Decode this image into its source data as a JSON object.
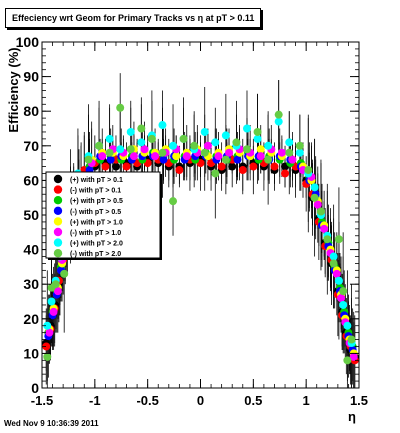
{
  "page": {
    "footer_date": "Wed Nov  9 10:36:39 2011"
  },
  "chart_data": {
    "type": "scatter",
    "title": "Effeciency wrt Geom for Primary Tracks vs    η at pT > 0.11",
    "xlabel": "η",
    "ylabel": "Efficiency (%)",
    "xlim": [
      -1.5,
      1.5
    ],
    "ylim": [
      0,
      100
    ],
    "x_ticks": [
      -1.5,
      -1,
      -0.5,
      0,
      0.5,
      1,
      1.5
    ],
    "x_tick_labels": [
      "-1.5",
      "-1",
      "-0.5",
      "0",
      "0.5",
      "1",
      "1.5"
    ],
    "y_ticks": [
      0,
      10,
      20,
      30,
      40,
      50,
      60,
      70,
      80,
      90,
      100
    ],
    "y_tick_labels": [
      "0",
      "10",
      "20",
      "30",
      "40",
      "50",
      "60",
      "70",
      "80",
      "90",
      "100"
    ],
    "grid": false,
    "legend_position": "left-middle",
    "series": [
      {
        "name": "(+) with pT > 0.1",
        "color": "#000000",
        "x": [
          -1.46,
          -1.42,
          -1.38,
          -1.34,
          -1.3,
          -1.26,
          -1.2,
          -1.1,
          -1.0,
          -0.9,
          -0.8,
          -0.7,
          -0.6,
          -0.5,
          -0.4,
          -0.3,
          -0.2,
          -0.1,
          0.0,
          0.1,
          0.2,
          0.3,
          0.4,
          0.5,
          0.6,
          0.7,
          0.8,
          0.9,
          1.0,
          1.06,
          1.12,
          1.18,
          1.24,
          1.3,
          1.34,
          1.38,
          1.42,
          1.46
        ],
        "y": [
          13,
          18,
          24,
          30,
          38,
          45,
          55,
          62,
          64,
          65,
          64,
          65,
          64,
          66,
          65,
          64,
          64,
          65,
          66,
          64,
          63,
          64,
          64,
          65,
          64,
          63,
          64,
          63,
          60,
          55,
          49,
          42,
          36,
          28,
          22,
          16,
          11,
          9
        ]
      },
      {
        "name": "(-) with pT > 0.1",
        "color": "#ff0000",
        "x": [
          -1.46,
          -1.42,
          -1.38,
          -1.34,
          -1.3,
          -1.26,
          -1.2,
          -1.1,
          -1.0,
          -0.9,
          -0.8,
          -0.7,
          -0.6,
          -0.5,
          -0.4,
          -0.3,
          -0.2,
          -0.1,
          0.0,
          0.1,
          0.2,
          0.3,
          0.4,
          0.5,
          0.6,
          0.7,
          0.8,
          0.9,
          1.0,
          1.06,
          1.12,
          1.18,
          1.24,
          1.3,
          1.34,
          1.38,
          1.42,
          1.46
        ],
        "y": [
          12,
          17,
          23,
          31,
          37,
          44,
          56,
          63,
          65,
          64,
          66,
          64,
          65,
          65,
          66,
          65,
          63,
          66,
          65,
          65,
          64,
          66,
          63,
          64,
          65,
          64,
          62,
          64,
          59,
          56,
          48,
          41,
          37,
          27,
          21,
          15,
          12,
          8
        ]
      },
      {
        "name": "(+) with pT > 0.5",
        "color": "#00cc00",
        "x": [
          -1.44,
          -1.4,
          -1.36,
          -1.32,
          -1.28,
          -1.22,
          -1.15,
          -1.05,
          -0.95,
          -0.85,
          -0.75,
          -0.65,
          -0.55,
          -0.45,
          -0.35,
          -0.25,
          -0.15,
          -0.05,
          0.05,
          0.15,
          0.25,
          0.35,
          0.45,
          0.55,
          0.65,
          0.75,
          0.85,
          0.95,
          1.03,
          1.09,
          1.15,
          1.21,
          1.27,
          1.32,
          1.36,
          1.4,
          1.44
        ],
        "y": [
          16,
          22,
          28,
          35,
          42,
          50,
          58,
          64,
          66,
          67,
          66,
          67,
          66,
          68,
          67,
          66,
          67,
          66,
          68,
          67,
          66,
          67,
          68,
          66,
          67,
          66,
          65,
          65,
          61,
          55,
          48,
          42,
          35,
          29,
          22,
          16,
          12
        ]
      },
      {
        "name": "(-) with pT > 0.5",
        "color": "#0000ff",
        "x": [
          -1.44,
          -1.4,
          -1.36,
          -1.32,
          -1.28,
          -1.22,
          -1.15,
          -1.05,
          -0.95,
          -0.85,
          -0.75,
          -0.65,
          -0.55,
          -0.45,
          -0.35,
          -0.25,
          -0.15,
          -0.05,
          0.05,
          0.15,
          0.25,
          0.35,
          0.45,
          0.55,
          0.65,
          0.75,
          0.85,
          0.95,
          1.03,
          1.09,
          1.15,
          1.21,
          1.27,
          1.32,
          1.36,
          1.4,
          1.44
        ],
        "y": [
          15,
          21,
          27,
          34,
          41,
          49,
          57,
          63,
          67,
          66,
          67,
          66,
          67,
          67,
          66,
          67,
          66,
          67,
          67,
          66,
          67,
          66,
          67,
          67,
          66,
          67,
          66,
          64,
          60,
          56,
          47,
          41,
          34,
          28,
          21,
          15,
          11
        ]
      },
      {
        "name": "(+) with pT > 1.0",
        "color": "#ffff00",
        "x": [
          -1.43,
          -1.39,
          -1.35,
          -1.31,
          -1.27,
          -1.21,
          -1.13,
          -1.03,
          -0.93,
          -0.83,
          -0.73,
          -0.63,
          -0.53,
          -0.43,
          -0.33,
          -0.23,
          -0.13,
          -0.03,
          0.07,
          0.17,
          0.27,
          0.37,
          0.47,
          0.57,
          0.67,
          0.77,
          0.87,
          0.97,
          1.05,
          1.11,
          1.17,
          1.23,
          1.29,
          1.33,
          1.37,
          1.41,
          1.45
        ],
        "y": [
          17,
          23,
          29,
          36,
          43,
          51,
          59,
          66,
          68,
          68,
          67,
          69,
          68,
          68,
          69,
          67,
          68,
          69,
          67,
          68,
          69,
          68,
          67,
          69,
          68,
          67,
          66,
          64,
          60,
          54,
          47,
          40,
          34,
          27,
          20,
          14,
          10
        ]
      },
      {
        "name": "(-) with pT > 1.0",
        "color": "#ff00ff",
        "x": [
          -1.43,
          -1.39,
          -1.35,
          -1.31,
          -1.27,
          -1.21,
          -1.13,
          -1.03,
          -0.93,
          -0.83,
          -0.73,
          -0.63,
          -0.53,
          -0.43,
          -0.33,
          -0.23,
          -0.13,
          -0.03,
          0.07,
          0.17,
          0.27,
          0.37,
          0.47,
          0.57,
          0.67,
          0.77,
          0.87,
          0.97,
          1.05,
          1.11,
          1.17,
          1.23,
          1.29,
          1.33,
          1.37,
          1.41,
          1.45
        ],
        "y": [
          16,
          22,
          28,
          37,
          44,
          52,
          60,
          65,
          67,
          69,
          68,
          67,
          69,
          67,
          68,
          69,
          67,
          68,
          70,
          67,
          68,
          69,
          68,
          67,
          69,
          68,
          66,
          63,
          61,
          53,
          46,
          39,
          33,
          26,
          19,
          13,
          9
        ]
      },
      {
        "name": "(+) with pT > 2.0",
        "color": "#00ffff",
        "x": [
          -1.45,
          -1.41,
          -1.37,
          -1.33,
          -1.29,
          -1.23,
          -1.16,
          -1.06,
          -0.96,
          -0.86,
          -0.76,
          -0.66,
          -0.56,
          -0.46,
          -0.36,
          -0.26,
          -0.16,
          -0.06,
          0.04,
          0.14,
          0.24,
          0.34,
          0.44,
          0.54,
          0.64,
          0.74,
          0.84,
          0.94,
          1.02,
          1.08,
          1.14,
          1.2,
          1.26,
          1.31,
          1.35,
          1.39,
          1.43
        ],
        "y": [
          18,
          25,
          31,
          38,
          45,
          53,
          62,
          67,
          70,
          72,
          69,
          74,
          71,
          73,
          76,
          70,
          72,
          69,
          74,
          71,
          73,
          70,
          75,
          72,
          70,
          77,
          71,
          68,
          62,
          58,
          50,
          44,
          38,
          31,
          24,
          18,
          13
        ]
      },
      {
        "name": "(-) with pT > 2.0",
        "color": "#66cc44",
        "x": [
          -1.45,
          -1.41,
          -1.37,
          -1.33,
          -1.29,
          -1.23,
          -1.16,
          -1.06,
          -0.96,
          -0.86,
          -0.76,
          -0.66,
          -0.56,
          -0.46,
          -0.36,
          -0.26,
          -0.16,
          -0.06,
          0.04,
          0.14,
          0.24,
          0.34,
          0.44,
          0.54,
          0.64,
          0.74,
          0.84,
          0.94,
          1.02,
          1.08,
          1.14,
          1.2,
          1.26,
          1.31,
          1.35,
          1.39,
          1.43
        ],
        "y": [
          9,
          29,
          30,
          39,
          33,
          50,
          57,
          66,
          70,
          68,
          81,
          69,
          75,
          72,
          68,
          54,
          72,
          70,
          68,
          62,
          66,
          71,
          69,
          74,
          66,
          79,
          68,
          70,
          63,
          55,
          51,
          43,
          36,
          43,
          28,
          8,
          14
        ]
      }
    ]
  }
}
